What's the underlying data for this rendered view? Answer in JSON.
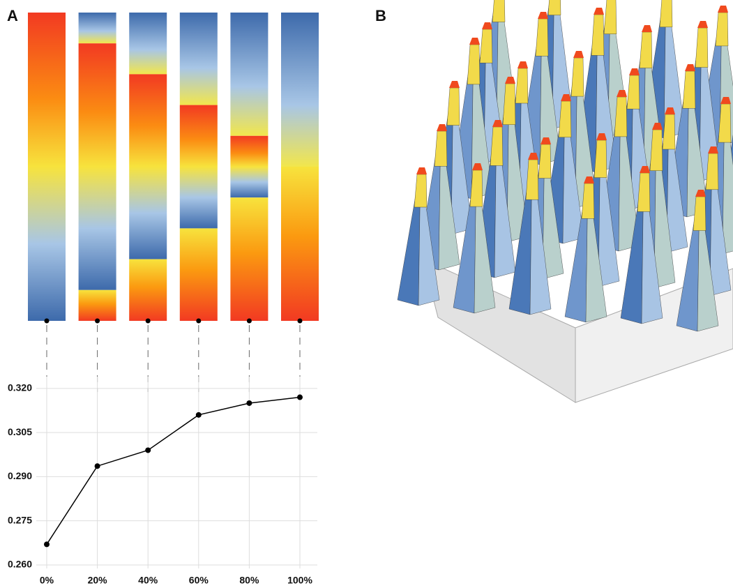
{
  "panel_labels": [
    "A",
    "B"
  ],
  "chart_data": {
    "type": "line",
    "categories": [
      "0%",
      "20%",
      "40%",
      "60%",
      "80%",
      "100%"
    ],
    "values": [
      0.267,
      0.2936,
      0.299,
      0.311,
      0.315,
      0.317
    ],
    "color": "#000000",
    "ylim": [
      0.2588,
      0.324
    ],
    "yticks": [
      {
        "value": 0.26,
        "label": "0.260"
      },
      0.275,
      {
        "value": 0.29,
        "label": "0.290"
      },
      0.305,
      {
        "value": 0.32,
        "label": "0.320"
      }
    ],
    "grid": true
  }
}
